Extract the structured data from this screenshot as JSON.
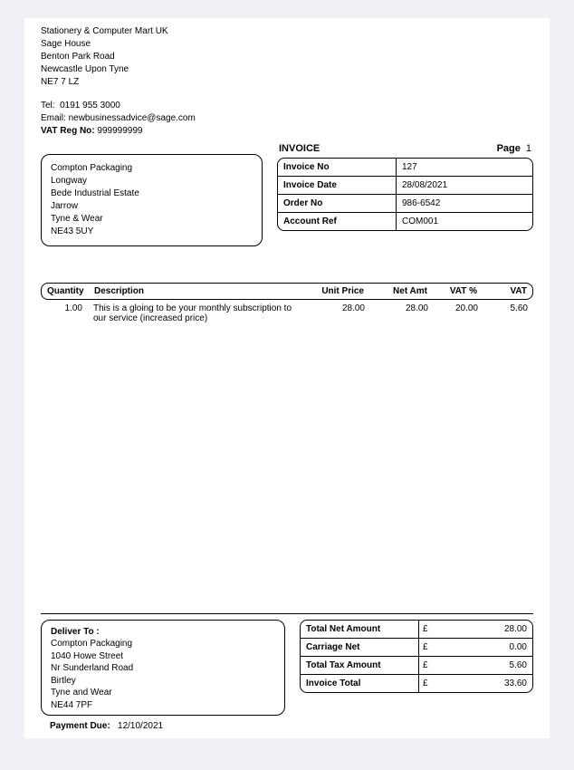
{
  "company": {
    "name": "Stationery & Computer Mart UK",
    "line1": "Sage House",
    "line2": "Benton Park Road",
    "line3": "Newcastle Upon Tyne",
    "line4": "NE7 7 LZ",
    "tel_label": "Tel:",
    "tel": "0191 955 3000",
    "email_label": "Email:",
    "email": "newbusinessadvice@sage.com",
    "vat_label": "VAT Reg No:",
    "vat": "999999999"
  },
  "customer": {
    "name": "Compton Packaging",
    "line1": "Longway",
    "line2": "Bede Industrial Estate",
    "line3": "Jarrow",
    "line4": "Tyne & Wear",
    "line5": "NE43 5UY"
  },
  "invoice_head": {
    "title": "INVOICE",
    "page_label": "Page",
    "page": "1",
    "rows": [
      {
        "label": "Invoice No",
        "value": "127"
      },
      {
        "label": "Invoice Date",
        "value": "28/08/2021"
      },
      {
        "label": "Order No",
        "value": "986-6542"
      },
      {
        "label": "Account Ref",
        "value": "COM001"
      }
    ]
  },
  "items": {
    "headers": {
      "qty": "Quantity",
      "desc": "Description",
      "unit": "Unit Price",
      "net": "Net Amt",
      "vatp": "VAT %",
      "vat": "VAT"
    },
    "rows": [
      {
        "qty": "1.00",
        "desc": "This is a gloing to be your monthly subscription to our service (increased price)",
        "unit": "28.00",
        "net": "28.00",
        "vatp": "20.00",
        "vat": "5.60"
      }
    ]
  },
  "deliver": {
    "title": "Deliver To :",
    "name": "Compton Packaging",
    "line1": "1040 Howe Street",
    "line2": "Nr Sunderland Road",
    "line3": "Birtley",
    "line4": "Tyne and Wear",
    "line5": "NE44 7PF"
  },
  "totals": {
    "currency": "£",
    "rows": [
      {
        "label": "Total Net Amount",
        "value": "28.00"
      },
      {
        "label": "Carriage Net",
        "value": "0.00"
      },
      {
        "label": "Total Tax Amount",
        "value": "5.60"
      },
      {
        "label": "Invoice Total",
        "value": "33.60"
      }
    ]
  },
  "payment": {
    "label": "Payment Due:",
    "date": "12/10/2021"
  }
}
